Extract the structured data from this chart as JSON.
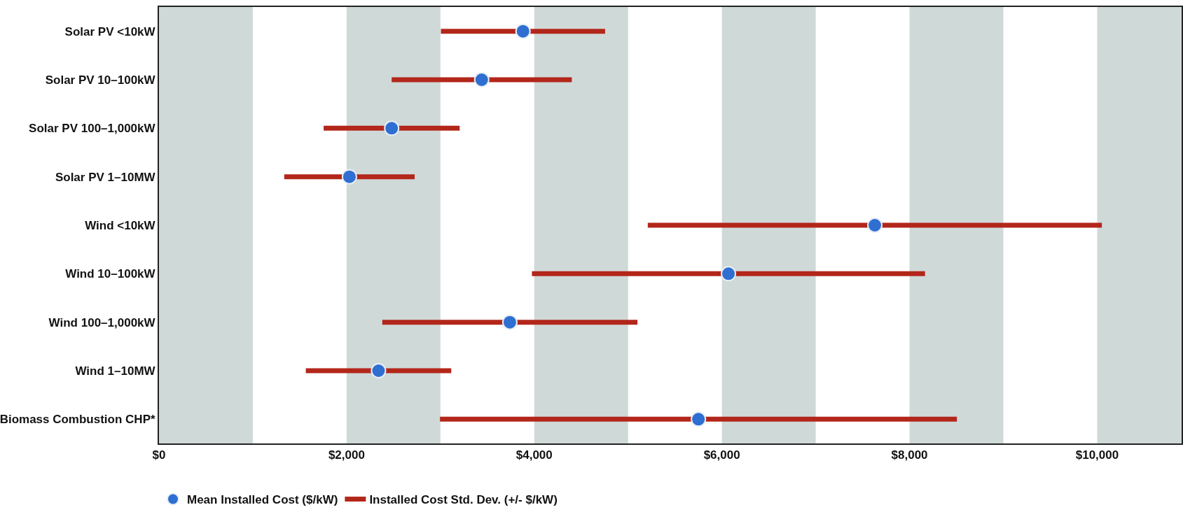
{
  "chart_data": {
    "type": "scatter",
    "categories": [
      "Solar PV <10kW",
      "Solar PV 10–100kW",
      "Solar PV 100–1,000kW",
      "Solar PV 1–10MW",
      "Wind <10kW",
      "Wind 10–100kW",
      "Wind 100–1,000kW",
      "Wind 1–10MW",
      "Biomass Combustion CHP*"
    ],
    "orientation": "horizontal",
    "series": [
      {
        "name": "Mean Installed Cost ($/kW)",
        "marker": "circle",
        "color": "#2e6fd1",
        "values": [
          3880,
          3440,
          2480,
          2030,
          7630,
          6070,
          3740,
          2340,
          5750
        ],
        "errors": [
          875,
          960,
          725,
          695,
          2420,
          2095,
          1360,
          775,
          2755
        ]
      },
      {
        "name": "Installed Cost Std. Dev. (+/- $/kW)",
        "type": "line",
        "color": "#b3261a",
        "values": [
          null,
          null,
          null,
          null,
          null,
          null,
          null,
          null,
          null
        ]
      }
    ],
    "xlim": [
      0,
      10900
    ],
    "xticks": [
      {
        "value": 0,
        "label": "$0"
      },
      {
        "value": 2000,
        "label": "$2,000"
      },
      {
        "value": 4000,
        "label": "$4,000"
      },
      {
        "value": 6000,
        "label": "$6,000"
      },
      {
        "value": 8000,
        "label": "$8,000"
      },
      {
        "value": 10000,
        "label": "$10,000"
      }
    ],
    "bands": [
      {
        "axis": "x",
        "from": 0,
        "to": 1000,
        "color": "#cfd9d8"
      },
      {
        "axis": "x",
        "from": 2000,
        "to": 3000,
        "color": "#cfd9d8"
      },
      {
        "axis": "x",
        "from": 4000,
        "to": 5000,
        "color": "#cfd9d8"
      },
      {
        "axis": "x",
        "from": 6000,
        "to": 7000,
        "color": "#cfd9d8"
      },
      {
        "axis": "x",
        "from": 8000,
        "to": 9000,
        "color": "#cfd9d8"
      },
      {
        "axis": "x",
        "from": 10000,
        "to": 10900,
        "color": "#cfd9d8"
      }
    ],
    "grid": false,
    "legend": "bottom"
  }
}
